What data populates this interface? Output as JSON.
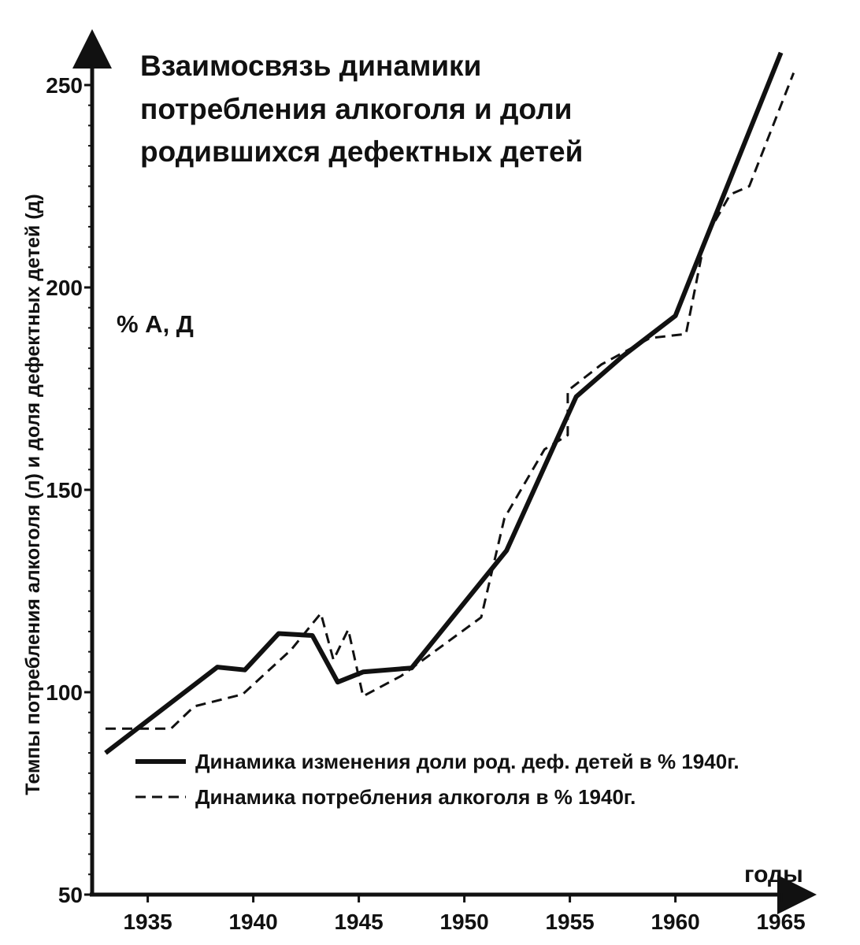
{
  "chart_data": {
    "type": "line",
    "title_lines": [
      "Взаимосвязь динамики",
      "потребления алкоголя и доли",
      "родившихся дефектных детей"
    ],
    "ylabel": "Темпы потребления алкоголя (л) и доля дефектных детей (д)",
    "yunit_label": "% А, Д",
    "xlabel": "годы",
    "xlim": [
      1933,
      1965.5
    ],
    "ylim": [
      50,
      256
    ],
    "xticks": [
      "1935",
      "1940",
      "1945",
      "1950",
      "1955",
      "1960",
      "1965"
    ],
    "yticks": [
      "50",
      "100",
      "150",
      "200",
      "250"
    ],
    "grid": false,
    "legend_position": "bottom-right",
    "series": [
      {
        "name": "Динамика изменения доли род. деф. детей в % 1940г.",
        "style": "solid",
        "color": "#111111",
        "points": [
          [
            1933,
            85
          ],
          [
            1938.3,
            106.2
          ],
          [
            1939.6,
            105.5
          ],
          [
            1941.2,
            114.5
          ],
          [
            1942.8,
            114
          ],
          [
            1944.0,
            102.5
          ],
          [
            1945.2,
            105
          ],
          [
            1947.5,
            106
          ],
          [
            1952.0,
            135
          ],
          [
            1955.3,
            173
          ],
          [
            1957.5,
            183
          ],
          [
            1960.0,
            193
          ],
          [
            1961.3,
            210
          ],
          [
            1965.0,
            258
          ]
        ]
      },
      {
        "name": "Динамика потребления алкоголя в % 1940г.",
        "style": "dashed",
        "color": "#111111",
        "points": [
          [
            1933,
            91
          ],
          [
            1936.1,
            91
          ],
          [
            1937.2,
            96.5
          ],
          [
            1939.5,
            99.5
          ],
          [
            1941.8,
            110.5
          ],
          [
            1943.2,
            119.5
          ],
          [
            1943.8,
            108
          ],
          [
            1944.5,
            115.5
          ],
          [
            1945.2,
            99
          ],
          [
            1947.0,
            104
          ],
          [
            1950.8,
            118.5
          ],
          [
            1951.9,
            143
          ],
          [
            1953.8,
            160
          ],
          [
            1954.9,
            163.5
          ],
          [
            1954.9,
            174.5
          ],
          [
            1956.5,
            181
          ],
          [
            1958.8,
            187.5
          ],
          [
            1960.5,
            188.5
          ],
          [
            1961.0,
            201.5
          ],
          [
            1961.4,
            212
          ],
          [
            1962.6,
            223
          ],
          [
            1963.5,
            225
          ],
          [
            1965.6,
            253
          ]
        ]
      }
    ]
  }
}
